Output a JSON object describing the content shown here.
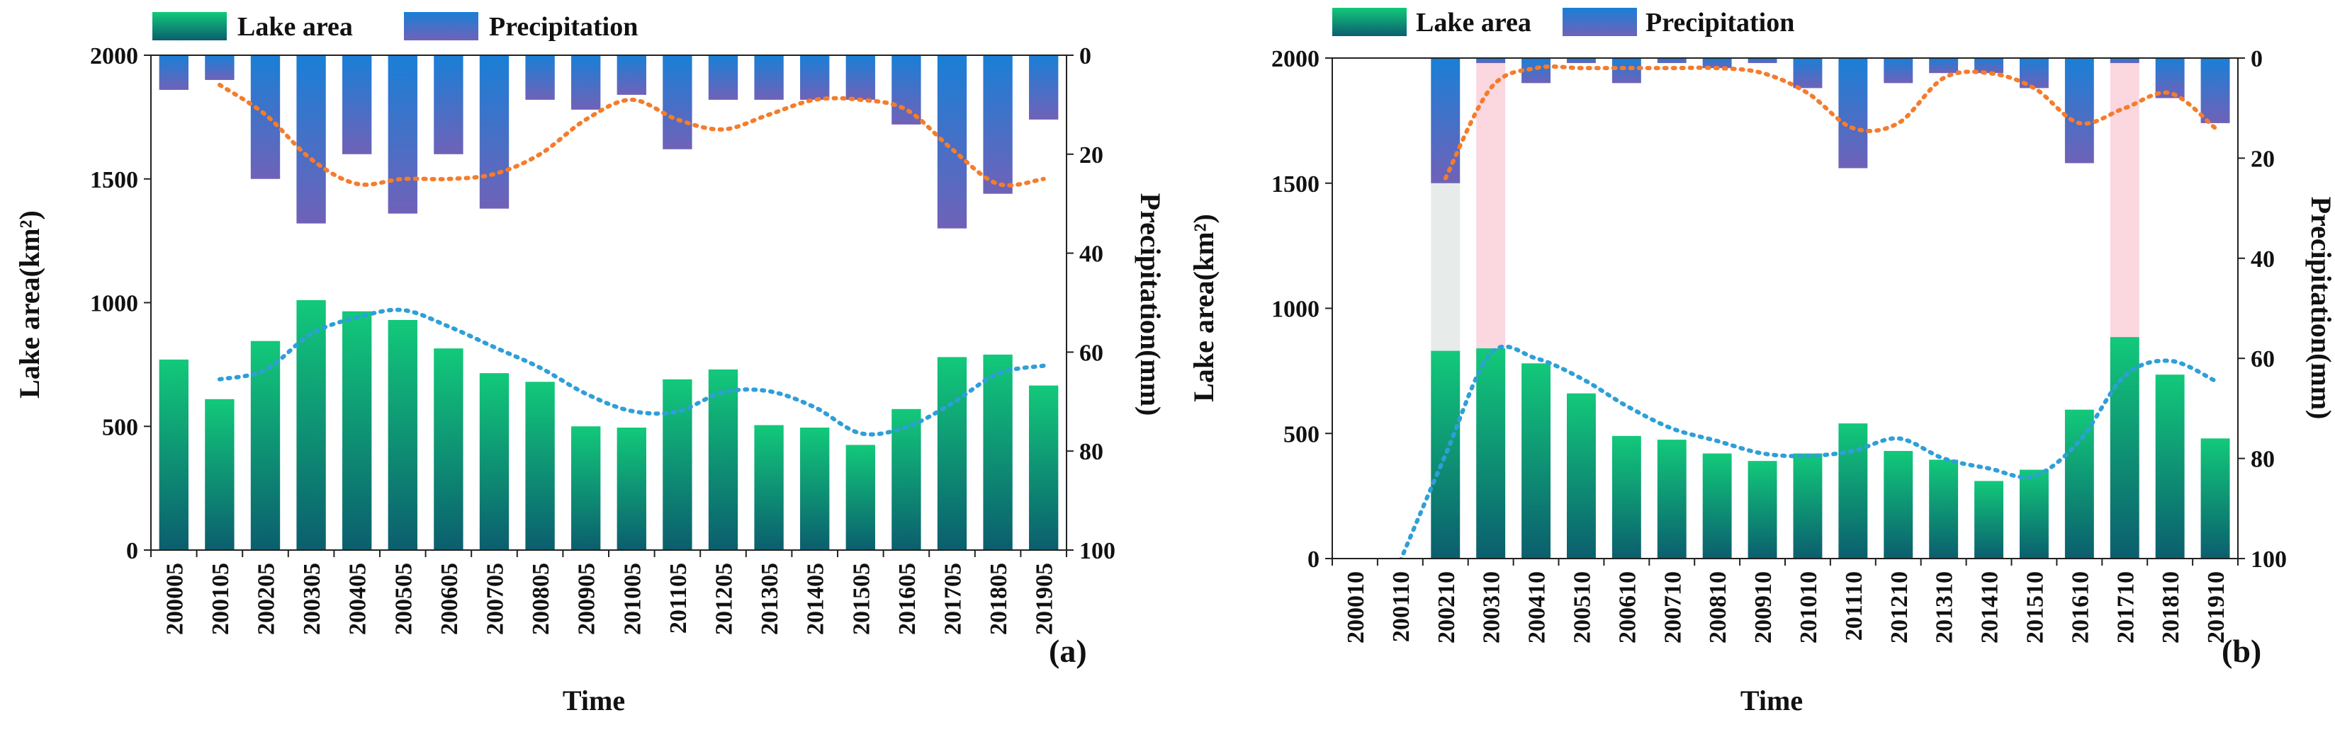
{
  "legend": {
    "lake_area": "Lake area",
    "precipitation": "Precipitation"
  },
  "colors": {
    "lake_top": "#12c97a",
    "lake_bottom": "#0b5e6e",
    "precip_top": "#1a7fd6",
    "precip_bottom": "#6f62b8",
    "lake_trend": "#2e9fd8",
    "precip_trend": "#f57c2c",
    "highlight_gray": "#dfe6e3",
    "highlight_pink": "#f9c9d6"
  },
  "chart_data": [
    {
      "type": "bar",
      "panel_label": "(a)",
      "xlabel": "Time",
      "ylabel": "Lake area(km²)",
      "y2label": "Precipitation(mm)",
      "ylim": [
        0,
        2000
      ],
      "yticks": [
        0,
        500,
        1000,
        1500,
        2000
      ],
      "y2lim": [
        0,
        100
      ],
      "y2ticks": [
        0,
        20,
        40,
        60,
        80,
        100
      ],
      "y2_inverted": true,
      "legend_position": "top-left",
      "categories": [
        "200005",
        "200105",
        "200205",
        "200305",
        "200405",
        "200505",
        "200605",
        "200705",
        "200805",
        "200905",
        "201005",
        "201105",
        "201205",
        "201305",
        "201405",
        "201505",
        "201605",
        "201705",
        "201805",
        "201905"
      ],
      "series": [
        {
          "name": "Lake area",
          "axis": "left",
          "values": [
            770,
            610,
            845,
            1010,
            965,
            930,
            815,
            715,
            680,
            500,
            495,
            690,
            730,
            505,
            495,
            425,
            570,
            780,
            790,
            665
          ]
        },
        {
          "name": "Precipitation",
          "axis": "right",
          "values": [
            7,
            5,
            25,
            34,
            20,
            32,
            20,
            31,
            9,
            11,
            8,
            19,
            9,
            9,
            9,
            9,
            14,
            35,
            28,
            13
          ]
        }
      ],
      "trendlines": {
        "lake_area": [
          null,
          690,
          728,
          874,
          940,
          970,
          904,
          820,
          737,
          632,
          562,
          560,
          638,
          642,
          577,
          472,
          497,
          593,
          713,
          745
        ],
        "precipitation": [
          null,
          6,
          12,
          21,
          26,
          25,
          25,
          24,
          20,
          13,
          9,
          13,
          15,
          12,
          9,
          9,
          11,
          19,
          26,
          25
        ]
      },
      "highlights": []
    },
    {
      "type": "bar",
      "panel_label": "(b)",
      "xlabel": "Time",
      "ylabel": "Lake area(km²)",
      "y2label": "Precipitation(mm)",
      "ylim": [
        0,
        2000
      ],
      "yticks": [
        0,
        500,
        1000,
        1500,
        2000
      ],
      "y2lim": [
        0,
        100
      ],
      "y2ticks": [
        0,
        20,
        40,
        60,
        80,
        100
      ],
      "y2_inverted": true,
      "legend_position": "top-left",
      "categories": [
        "200010",
        "200110",
        "200210",
        "200310",
        "200410",
        "200510",
        "200610",
        "200710",
        "200810",
        "200910",
        "201010",
        "201110",
        "201210",
        "201310",
        "201410",
        "201510",
        "201610",
        "201710",
        "201810",
        "201910"
      ],
      "series": [
        {
          "name": "Lake area",
          "axis": "left",
          "values": [
            0,
            0,
            830,
            840,
            780,
            660,
            490,
            475,
            420,
            390,
            420,
            540,
            430,
            395,
            310,
            355,
            595,
            885,
            735,
            480
          ]
        },
        {
          "name": "Precipitation",
          "axis": "right",
          "values": [
            0,
            0,
            25,
            1,
            5,
            1,
            5,
            1,
            2,
            1,
            6,
            22,
            5,
            3,
            3,
            6,
            21,
            1,
            8,
            13
          ]
        }
      ],
      "trendlines": {
        "lake_area": [
          null,
          -10,
          415,
          820,
          800,
          720,
          610,
          520,
          470,
          420,
          410,
          430,
          480,
          400,
          360,
          330,
          470,
          730,
          790,
          710
        ],
        "precipitation": [
          null,
          null,
          24,
          6,
          2,
          2,
          2,
          2,
          2,
          3,
          7,
          14,
          13,
          4,
          3,
          6,
          13,
          10,
          7,
          14
        ]
      },
      "highlights": [
        {
          "index": 2,
          "color": "gray"
        },
        {
          "index": 3,
          "color": "pink"
        },
        {
          "index": 17,
          "color": "pink"
        }
      ]
    }
  ]
}
